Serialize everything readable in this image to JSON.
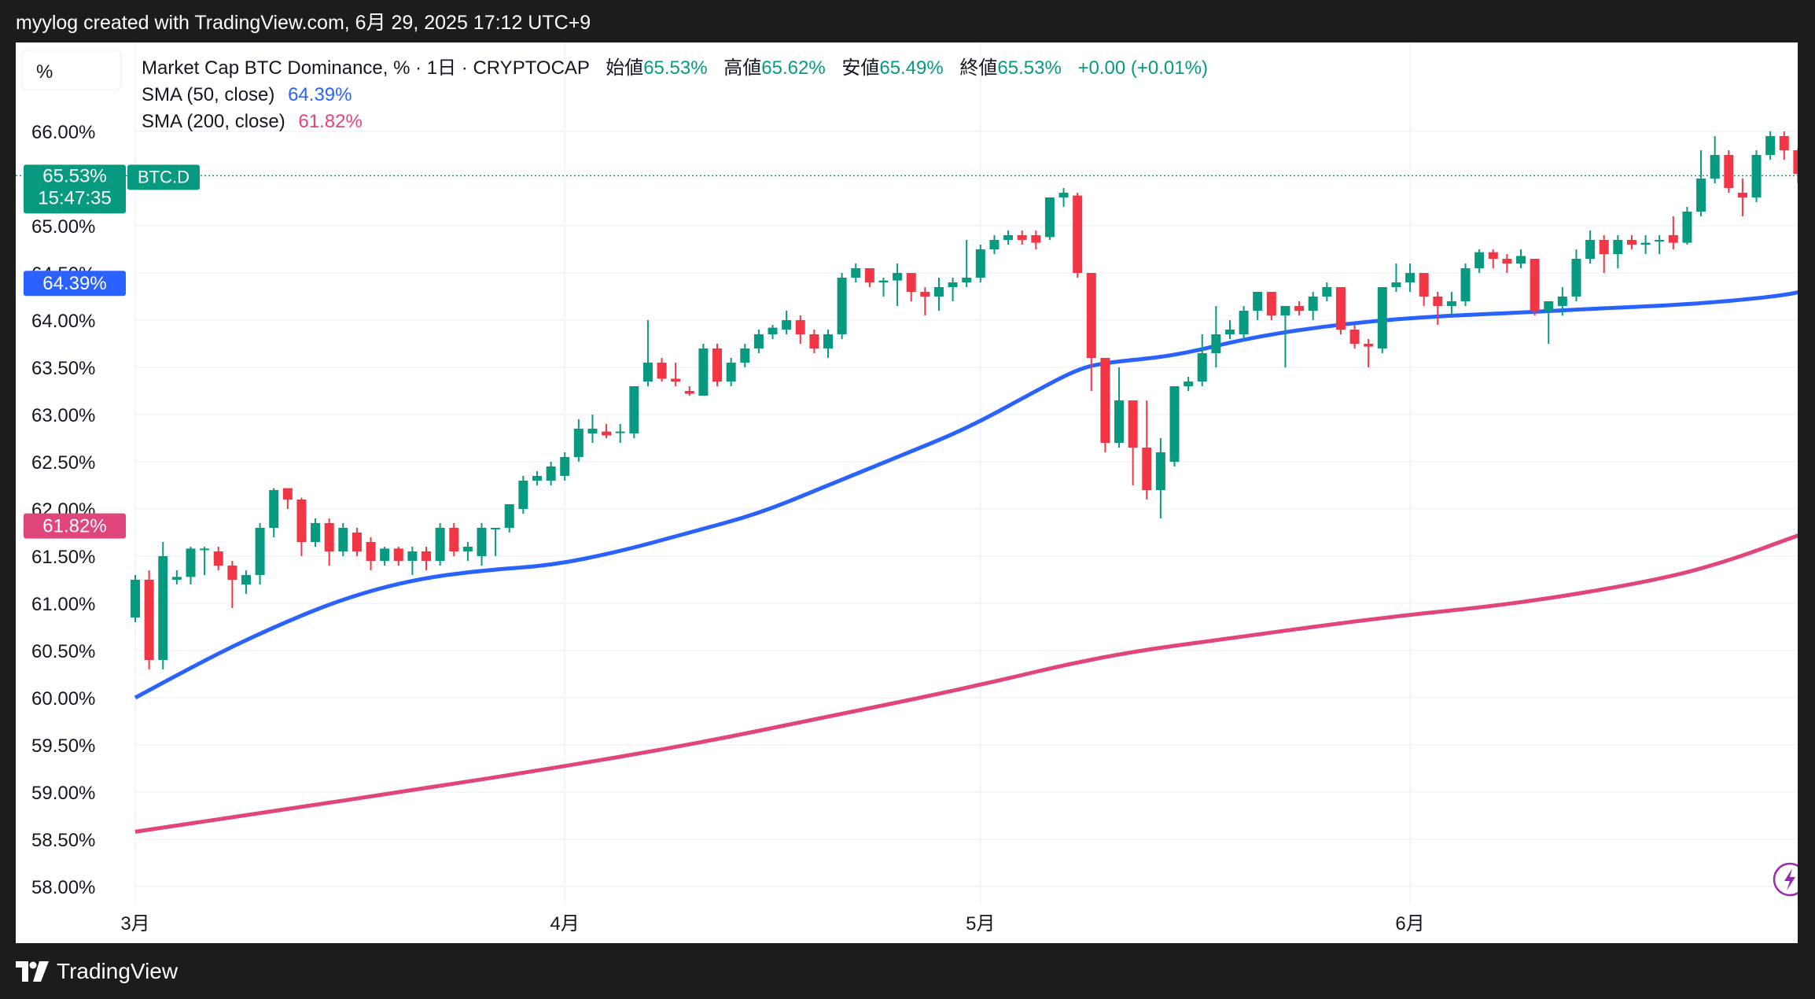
{
  "header": {
    "caption": "myylog created with TradingView.com, 6月 29, 2025 17:12 UTC+9"
  },
  "legend": {
    "scale_button": "%",
    "title": "Market Cap BTC Dominance, % · 1日 · CRYPTOCAP",
    "open_label": "始値",
    "open_value": "65.53%",
    "high_label": "高値",
    "high_value": "65.62%",
    "low_label": "安値",
    "low_value": "65.49%",
    "close_label": "終値",
    "close_value": "65.53%",
    "change": "+0.00 (+0.01%)",
    "sma50_label": "SMA (50, close)",
    "sma50_value": "64.39%",
    "sma200_label": "SMA (200, close)",
    "sma200_value": "61.82%"
  },
  "price_tag": {
    "value": "65.53%",
    "countdown": "15:47:35",
    "symbol": "BTC.D"
  },
  "sma50_tag": "64.39%",
  "sma200_tag": "61.82%",
  "footer": {
    "brand": "TradingView"
  },
  "colors": {
    "up": "#089981",
    "down": "#f23645",
    "sma50": "#2962ff",
    "sma200": "#e0457b",
    "bg": "#ffffff"
  },
  "chart_data": {
    "type": "candlestick",
    "y_axis": {
      "min": 58.0,
      "max": 66.0,
      "ticks": [
        "66.00%",
        "65.50%",
        "65.00%",
        "64.50%",
        "64.00%",
        "63.50%",
        "63.00%",
        "62.50%",
        "62.00%",
        "61.50%",
        "61.00%",
        "60.50%",
        "60.00%",
        "59.50%",
        "59.00%",
        "58.50%",
        "58.00%"
      ],
      "unit": "%"
    },
    "x_axis": {
      "labels": [
        "3月",
        "4月",
        "5月",
        "6月"
      ],
      "label_days": [
        0,
        31,
        61,
        92
      ]
    },
    "candles": [
      {
        "d": 0,
        "o": 60.85,
        "h": 61.3,
        "l": 60.8,
        "c": 61.25
      },
      {
        "d": 1,
        "o": 61.25,
        "h": 61.35,
        "l": 60.3,
        "c": 60.4
      },
      {
        "d": 2,
        "o": 60.4,
        "h": 61.65,
        "l": 60.3,
        "c": 61.5
      },
      {
        "d": 3,
        "o": 61.25,
        "h": 61.35,
        "l": 61.2,
        "c": 61.28
      },
      {
        "d": 4,
        "o": 61.28,
        "h": 61.6,
        "l": 61.2,
        "c": 61.58
      },
      {
        "d": 5,
        "o": 61.58,
        "h": 61.6,
        "l": 61.3,
        "c": 61.58
      },
      {
        "d": 6,
        "o": 61.55,
        "h": 61.6,
        "l": 61.35,
        "c": 61.4
      },
      {
        "d": 7,
        "o": 61.4,
        "h": 61.45,
        "l": 60.95,
        "c": 61.25
      },
      {
        "d": 8,
        "o": 61.2,
        "h": 61.35,
        "l": 61.1,
        "c": 61.3
      },
      {
        "d": 9,
        "o": 61.3,
        "h": 61.85,
        "l": 61.2,
        "c": 61.8
      },
      {
        "d": 10,
        "o": 61.8,
        "h": 62.22,
        "l": 61.7,
        "c": 62.2
      },
      {
        "d": 11,
        "o": 62.22,
        "h": 62.22,
        "l": 62.0,
        "c": 62.1
      },
      {
        "d": 12,
        "o": 62.1,
        "h": 62.12,
        "l": 61.5,
        "c": 61.65
      },
      {
        "d": 13,
        "o": 61.65,
        "h": 61.9,
        "l": 61.6,
        "c": 61.85
      },
      {
        "d": 14,
        "o": 61.85,
        "h": 61.9,
        "l": 61.4,
        "c": 61.55
      },
      {
        "d": 15,
        "o": 61.55,
        "h": 61.85,
        "l": 61.5,
        "c": 61.8
      },
      {
        "d": 16,
        "o": 61.75,
        "h": 61.8,
        "l": 61.5,
        "c": 61.55
      },
      {
        "d": 17,
        "o": 61.65,
        "h": 61.7,
        "l": 61.35,
        "c": 61.45
      },
      {
        "d": 18,
        "o": 61.45,
        "h": 61.6,
        "l": 61.4,
        "c": 61.58
      },
      {
        "d": 19,
        "o": 61.58,
        "h": 61.6,
        "l": 61.4,
        "c": 61.45
      },
      {
        "d": 20,
        "o": 61.45,
        "h": 61.6,
        "l": 61.3,
        "c": 61.55
      },
      {
        "d": 21,
        "o": 61.55,
        "h": 61.6,
        "l": 61.35,
        "c": 61.45
      },
      {
        "d": 22,
        "o": 61.45,
        "h": 61.85,
        "l": 61.4,
        "c": 61.8
      },
      {
        "d": 23,
        "o": 61.8,
        "h": 61.85,
        "l": 61.5,
        "c": 61.55
      },
      {
        "d": 24,
        "o": 61.55,
        "h": 61.65,
        "l": 61.45,
        "c": 61.6
      },
      {
        "d": 25,
        "o": 61.5,
        "h": 61.85,
        "l": 61.4,
        "c": 61.8
      },
      {
        "d": 26,
        "o": 61.8,
        "h": 61.8,
        "l": 61.5,
        "c": 61.8
      },
      {
        "d": 27,
        "o": 61.8,
        "h": 62.05,
        "l": 61.75,
        "c": 62.05
      },
      {
        "d": 28,
        "o": 62.0,
        "h": 62.35,
        "l": 61.95,
        "c": 62.3
      },
      {
        "d": 29,
        "o": 62.3,
        "h": 62.4,
        "l": 62.25,
        "c": 62.35
      },
      {
        "d": 30,
        "o": 62.3,
        "h": 62.5,
        "l": 62.25,
        "c": 62.45
      },
      {
        "d": 31,
        "o": 62.35,
        "h": 62.6,
        "l": 62.3,
        "c": 62.55
      },
      {
        "d": 32,
        "o": 62.55,
        "h": 62.95,
        "l": 62.5,
        "c": 62.85
      },
      {
        "d": 33,
        "o": 62.8,
        "h": 63.0,
        "l": 62.7,
        "c": 62.85
      },
      {
        "d": 34,
        "o": 62.82,
        "h": 62.9,
        "l": 62.75,
        "c": 62.78
      },
      {
        "d": 35,
        "o": 62.82,
        "h": 62.9,
        "l": 62.7,
        "c": 62.82
      },
      {
        "d": 36,
        "o": 62.8,
        "h": 63.3,
        "l": 62.75,
        "c": 63.3
      },
      {
        "d": 37,
        "o": 63.35,
        "h": 64.0,
        "l": 63.3,
        "c": 63.55
      },
      {
        "d": 38,
        "o": 63.55,
        "h": 63.6,
        "l": 63.35,
        "c": 63.38
      },
      {
        "d": 39,
        "o": 63.38,
        "h": 63.55,
        "l": 63.3,
        "c": 63.35
      },
      {
        "d": 40,
        "o": 63.25,
        "h": 63.3,
        "l": 63.2,
        "c": 63.22
      },
      {
        "d": 41,
        "o": 63.2,
        "h": 63.75,
        "l": 63.2,
        "c": 63.7
      },
      {
        "d": 42,
        "o": 63.7,
        "h": 63.75,
        "l": 63.3,
        "c": 63.35
      },
      {
        "d": 43,
        "o": 63.35,
        "h": 63.6,
        "l": 63.3,
        "c": 63.55
      },
      {
        "d": 44,
        "o": 63.55,
        "h": 63.75,
        "l": 63.5,
        "c": 63.7
      },
      {
        "d": 45,
        "o": 63.7,
        "h": 63.9,
        "l": 63.65,
        "c": 63.85
      },
      {
        "d": 46,
        "o": 63.85,
        "h": 63.95,
        "l": 63.8,
        "c": 63.92
      },
      {
        "d": 47,
        "o": 63.9,
        "h": 64.1,
        "l": 63.85,
        "c": 64.0
      },
      {
        "d": 48,
        "o": 64.0,
        "h": 64.05,
        "l": 63.75,
        "c": 63.85
      },
      {
        "d": 49,
        "o": 63.85,
        "h": 63.9,
        "l": 63.65,
        "c": 63.7
      },
      {
        "d": 50,
        "o": 63.7,
        "h": 63.9,
        "l": 63.6,
        "c": 63.85
      },
      {
        "d": 51,
        "o": 63.85,
        "h": 64.5,
        "l": 63.8,
        "c": 64.45
      },
      {
        "d": 52,
        "o": 64.45,
        "h": 64.6,
        "l": 64.4,
        "c": 64.55
      },
      {
        "d": 53,
        "o": 64.55,
        "h": 64.55,
        "l": 64.35,
        "c": 64.4
      },
      {
        "d": 54,
        "o": 64.4,
        "h": 64.45,
        "l": 64.25,
        "c": 64.42
      },
      {
        "d": 55,
        "o": 64.42,
        "h": 64.6,
        "l": 64.15,
        "c": 64.5
      },
      {
        "d": 56,
        "o": 64.5,
        "h": 64.5,
        "l": 64.2,
        "c": 64.3
      },
      {
        "d": 57,
        "o": 64.3,
        "h": 64.35,
        "l": 64.05,
        "c": 64.25
      },
      {
        "d": 58,
        "o": 64.25,
        "h": 64.45,
        "l": 64.1,
        "c": 64.35
      },
      {
        "d": 59,
        "o": 64.35,
        "h": 64.45,
        "l": 64.2,
        "c": 64.4
      },
      {
        "d": 60,
        "o": 64.4,
        "h": 64.85,
        "l": 64.35,
        "c": 64.45
      },
      {
        "d": 61,
        "o": 64.45,
        "h": 64.8,
        "l": 64.4,
        "c": 64.75
      },
      {
        "d": 62,
        "o": 64.75,
        "h": 64.9,
        "l": 64.7,
        "c": 64.85
      },
      {
        "d": 63,
        "o": 64.85,
        "h": 64.95,
        "l": 64.8,
        "c": 64.9
      },
      {
        "d": 64,
        "o": 64.9,
        "h": 64.95,
        "l": 64.8,
        "c": 64.85
      },
      {
        "d": 65,
        "o": 64.9,
        "h": 64.95,
        "l": 64.75,
        "c": 64.82
      },
      {
        "d": 66,
        "o": 64.88,
        "h": 65.3,
        "l": 64.85,
        "c": 65.3
      },
      {
        "d": 67,
        "o": 65.3,
        "h": 65.4,
        "l": 65.2,
        "c": 65.35
      },
      {
        "d": 68,
        "o": 65.32,
        "h": 65.35,
        "l": 64.45,
        "c": 64.5
      },
      {
        "d": 69,
        "o": 64.5,
        "h": 64.5,
        "l": 63.25,
        "c": 63.6
      },
      {
        "d": 70,
        "o": 63.6,
        "h": 63.6,
        "l": 62.6,
        "c": 62.7
      },
      {
        "d": 71,
        "o": 62.7,
        "h": 63.5,
        "l": 62.65,
        "c": 63.15
      },
      {
        "d": 72,
        "o": 63.15,
        "h": 63.15,
        "l": 62.25,
        "c": 62.65
      },
      {
        "d": 73,
        "o": 62.65,
        "h": 63.15,
        "l": 62.1,
        "c": 62.2
      },
      {
        "d": 74,
        "o": 62.2,
        "h": 62.75,
        "l": 61.9,
        "c": 62.6
      },
      {
        "d": 75,
        "o": 62.5,
        "h": 63.3,
        "l": 62.45,
        "c": 63.3
      },
      {
        "d": 76,
        "o": 63.3,
        "h": 63.4,
        "l": 63.25,
        "c": 63.35
      },
      {
        "d": 77,
        "o": 63.35,
        "h": 63.85,
        "l": 63.3,
        "c": 63.65
      },
      {
        "d": 78,
        "o": 63.65,
        "h": 64.15,
        "l": 63.5,
        "c": 63.85
      },
      {
        "d": 79,
        "o": 63.85,
        "h": 64.0,
        "l": 63.8,
        "c": 63.9
      },
      {
        "d": 80,
        "o": 63.85,
        "h": 64.15,
        "l": 63.8,
        "c": 64.1
      },
      {
        "d": 81,
        "o": 64.1,
        "h": 64.3,
        "l": 64.0,
        "c": 64.3
      },
      {
        "d": 82,
        "o": 64.3,
        "h": 64.3,
        "l": 64.0,
        "c": 64.05
      },
      {
        "d": 83,
        "o": 64.05,
        "h": 64.15,
        "l": 63.5,
        "c": 64.15
      },
      {
        "d": 84,
        "o": 64.15,
        "h": 64.2,
        "l": 64.05,
        "c": 64.1
      },
      {
        "d": 85,
        "o": 64.1,
        "h": 64.3,
        "l": 64.0,
        "c": 64.25
      },
      {
        "d": 86,
        "o": 64.25,
        "h": 64.4,
        "l": 64.2,
        "c": 64.35
      },
      {
        "d": 87,
        "o": 64.35,
        "h": 64.35,
        "l": 63.85,
        "c": 63.9
      },
      {
        "d": 88,
        "o": 63.9,
        "h": 63.95,
        "l": 63.7,
        "c": 63.75
      },
      {
        "d": 89,
        "o": 63.75,
        "h": 63.8,
        "l": 63.5,
        "c": 63.72
      },
      {
        "d": 90,
        "o": 63.7,
        "h": 64.35,
        "l": 63.65,
        "c": 64.35
      },
      {
        "d": 91,
        "o": 64.35,
        "h": 64.6,
        "l": 64.3,
        "c": 64.4
      },
      {
        "d": 92,
        "o": 64.4,
        "h": 64.6,
        "l": 64.3,
        "c": 64.5
      },
      {
        "d": 93,
        "o": 64.5,
        "h": 64.5,
        "l": 64.15,
        "c": 64.25
      },
      {
        "d": 94,
        "o": 64.25,
        "h": 64.3,
        "l": 63.95,
        "c": 64.15
      },
      {
        "d": 95,
        "o": 64.15,
        "h": 64.3,
        "l": 64.05,
        "c": 64.2
      },
      {
        "d": 96,
        "o": 64.2,
        "h": 64.6,
        "l": 64.15,
        "c": 64.55
      },
      {
        "d": 97,
        "o": 64.55,
        "h": 64.75,
        "l": 64.5,
        "c": 64.72
      },
      {
        "d": 98,
        "o": 64.72,
        "h": 64.75,
        "l": 64.55,
        "c": 64.65
      },
      {
        "d": 99,
        "o": 64.65,
        "h": 64.7,
        "l": 64.5,
        "c": 64.6
      },
      {
        "d": 100,
        "o": 64.6,
        "h": 64.75,
        "l": 64.55,
        "c": 64.68
      },
      {
        "d": 101,
        "o": 64.65,
        "h": 64.65,
        "l": 64.05,
        "c": 64.1
      },
      {
        "d": 102,
        "o": 64.1,
        "h": 64.2,
        "l": 63.75,
        "c": 64.2
      },
      {
        "d": 103,
        "o": 64.15,
        "h": 64.35,
        "l": 64.05,
        "c": 64.25
      },
      {
        "d": 104,
        "o": 64.25,
        "h": 64.75,
        "l": 64.2,
        "c": 64.65
      },
      {
        "d": 105,
        "o": 64.65,
        "h": 64.95,
        "l": 64.6,
        "c": 64.85
      },
      {
        "d": 106,
        "o": 64.85,
        "h": 64.9,
        "l": 64.5,
        "c": 64.7
      },
      {
        "d": 107,
        "o": 64.7,
        "h": 64.9,
        "l": 64.55,
        "c": 64.85
      },
      {
        "d": 108,
        "o": 64.85,
        "h": 64.9,
        "l": 64.75,
        "c": 64.8
      },
      {
        "d": 109,
        "o": 64.8,
        "h": 64.9,
        "l": 64.7,
        "c": 64.82
      },
      {
        "d": 110,
        "o": 64.85,
        "h": 64.9,
        "l": 64.7,
        "c": 64.85
      },
      {
        "d": 111,
        "o": 64.9,
        "h": 65.1,
        "l": 64.75,
        "c": 64.82
      },
      {
        "d": 112,
        "o": 64.82,
        "h": 65.2,
        "l": 64.8,
        "c": 65.15
      },
      {
        "d": 113,
        "o": 65.15,
        "h": 65.8,
        "l": 65.1,
        "c": 65.5
      },
      {
        "d": 114,
        "o": 65.5,
        "h": 65.95,
        "l": 65.45,
        "c": 65.75
      },
      {
        "d": 115,
        "o": 65.75,
        "h": 65.8,
        "l": 65.35,
        "c": 65.4
      },
      {
        "d": 116,
        "o": 65.35,
        "h": 65.5,
        "l": 65.1,
        "c": 65.3
      },
      {
        "d": 117,
        "o": 65.3,
        "h": 65.8,
        "l": 65.25,
        "c": 65.75
      },
      {
        "d": 118,
        "o": 65.75,
        "h": 66.0,
        "l": 65.7,
        "c": 65.95
      },
      {
        "d": 119,
        "o": 65.95,
        "h": 66.0,
        "l": 65.7,
        "c": 65.8
      },
      {
        "d": 120,
        "o": 65.8,
        "h": 65.82,
        "l": 65.45,
        "c": 65.55
      },
      {
        "d": 121,
        "o": 65.55,
        "h": 65.62,
        "l": 65.49,
        "c": 65.53
      }
    ],
    "series": [
      {
        "name": "SMA (50, close)",
        "x": [
          0,
          5,
          10,
          15,
          20,
          25,
          30,
          35,
          40,
          45,
          50,
          55,
          60,
          65,
          68,
          70,
          75,
          80,
          85,
          90,
          95,
          100,
          105,
          110,
          115,
          120,
          122
        ],
        "y": [
          60.0,
          60.4,
          60.75,
          61.05,
          61.25,
          61.35,
          61.4,
          61.55,
          61.75,
          61.95,
          62.25,
          62.55,
          62.85,
          63.25,
          63.48,
          63.55,
          63.62,
          63.8,
          63.92,
          64.0,
          64.05,
          64.08,
          64.12,
          64.15,
          64.2,
          64.28,
          64.39
        ]
      },
      {
        "name": "SMA (200, close)",
        "x": [
          0,
          10,
          20,
          30,
          40,
          50,
          60,
          70,
          80,
          90,
          100,
          110,
          115,
          120,
          122
        ],
        "y": [
          58.58,
          58.8,
          59.02,
          59.25,
          59.5,
          59.8,
          60.1,
          60.45,
          60.65,
          60.85,
          61.0,
          61.25,
          61.45,
          61.72,
          61.82
        ]
      }
    ]
  }
}
